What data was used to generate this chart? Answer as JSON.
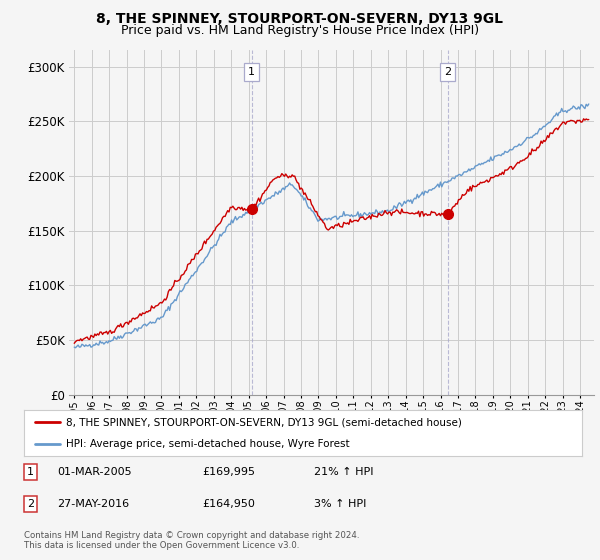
{
  "title": "8, THE SPINNEY, STOURPORT-ON-SEVERN, DY13 9GL",
  "subtitle": "Price paid vs. HM Land Registry's House Price Index (HPI)",
  "ylabel_ticks": [
    "£0",
    "£50K",
    "£100K",
    "£150K",
    "£200K",
    "£250K",
    "£300K"
  ],
  "ytick_values": [
    0,
    50000,
    100000,
    150000,
    200000,
    250000,
    300000
  ],
  "ylim": [
    0,
    315000
  ],
  "xlim_left": 1994.7,
  "xlim_right": 2024.8,
  "sale1_date_num": 2005.17,
  "sale1_price": 169995,
  "sale1_label": "1",
  "sale2_date_num": 2016.41,
  "sale2_price": 164950,
  "sale2_label": "2",
  "hpi_color": "#6699cc",
  "price_color": "#cc0000",
  "background_color": "#f5f5f5",
  "grid_color": "#cccccc",
  "legend_label1": "8, THE SPINNEY, STOURPORT-ON-SEVERN, DY13 9GL (semi-detached house)",
  "legend_label2": "HPI: Average price, semi-detached house, Wyre Forest",
  "footer": "Contains HM Land Registry data © Crown copyright and database right 2024.\nThis data is licensed under the Open Government Licence v3.0.",
  "title_fontsize": 10,
  "subtitle_fontsize": 9
}
